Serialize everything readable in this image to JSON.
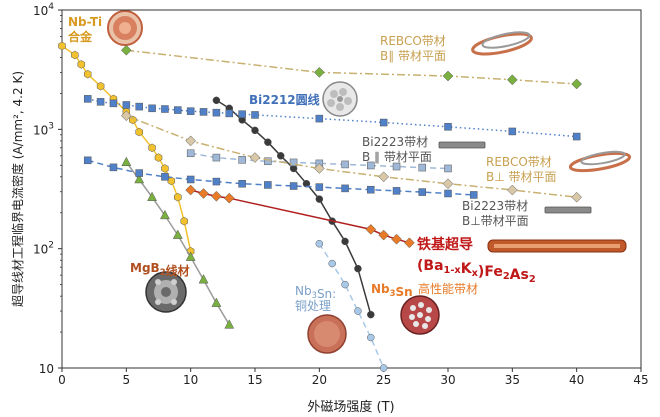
{
  "chart_data": {
    "type": "line",
    "title": "",
    "xlabel": "外磁场强度 (T)",
    "ylabel": "超导线材工程临界电流密度 (A/mm², 4.2 K)",
    "xlim": [
      0,
      45
    ],
    "ylim": [
      10,
      10000
    ],
    "yscale": "log",
    "grid": false,
    "xticks": [
      "0",
      "5",
      "10",
      "15",
      "20",
      "25",
      "30",
      "35",
      "40",
      "45"
    ],
    "yticks": [
      {
        "base": "10",
        "exp": "",
        "value": 10
      },
      {
        "base": "10",
        "exp": "2",
        "value": 100
      },
      {
        "base": "10",
        "exp": "3",
        "value": 1000
      },
      {
        "base": "10",
        "exp": "4",
        "value": 10000
      }
    ],
    "series": [
      {
        "name": "Nb-Ti",
        "color": "#f2c12e",
        "marker": "hexagon",
        "linestyle": "solid",
        "x": [
          0,
          1,
          1.5,
          2,
          3,
          4,
          5,
          5.5,
          6,
          7,
          7.5,
          8,
          8.5,
          9,
          9.5,
          10
        ],
        "y": [
          5000,
          4200,
          3500,
          2900,
          2300,
          1800,
          1400,
          1200,
          950,
          700,
          580,
          470,
          370,
          270,
          170,
          95
        ]
      },
      {
        "name": "MgB2",
        "color": "#7ab040",
        "marker": "triangle",
        "linestyle": "solid",
        "line_color": "#9a9a9a",
        "x": [
          5,
          6,
          7,
          8,
          9,
          10,
          11,
          12,
          13
        ],
        "y": [
          530,
          380,
          270,
          190,
          130,
          85,
          55,
          35,
          23
        ]
      },
      {
        "name": "Nb3Sn 高性能",
        "color": "#3a3a3a",
        "marker": "circle",
        "linestyle": "solid",
        "x": [
          12,
          13,
          14,
          15,
          16,
          17,
          18,
          19,
          20,
          21,
          22,
          23,
          24
        ],
        "y": [
          1750,
          1500,
          1200,
          980,
          780,
          600,
          470,
          350,
          260,
          170,
          115,
          68,
          28
        ]
      },
      {
        "name": "Nb3Sn 铜处理",
        "color": "#a8c8e8",
        "marker": "circle",
        "linestyle": "dashed",
        "x": [
          20,
          21,
          22,
          23,
          24,
          25
        ],
        "y": [
          110,
          75,
          50,
          30,
          18,
          10
        ]
      },
      {
        "name": "Bi2212",
        "color": "#5080c8",
        "marker": "square",
        "linestyle": "dotted",
        "x": [
          2,
          3,
          4,
          5,
          6,
          7,
          8,
          9,
          10,
          11,
          12,
          13,
          14,
          15,
          20,
          25,
          30,
          35,
          40
        ],
        "y": [
          1800,
          1700,
          1650,
          1600,
          1550,
          1500,
          1480,
          1450,
          1420,
          1400,
          1380,
          1360,
          1340,
          1320,
          1230,
          1140,
          1050,
          960,
          870
        ]
      },
      {
        "name": "Bi2223 B∥",
        "color": "#a0b8d8",
        "marker": "square",
        "linestyle": "dashed",
        "x": [
          10,
          12,
          14,
          16,
          18,
          20,
          22,
          24,
          26,
          28,
          30
        ],
        "y": [
          630,
          580,
          555,
          540,
          528,
          518,
          508,
          498,
          488,
          478,
          470
        ]
      },
      {
        "name": "Bi2223 B⊥",
        "color": "#5080c8",
        "marker": "square",
        "linestyle": "dashed",
        "x": [
          2,
          4,
          6,
          8,
          10,
          12,
          14,
          16,
          18,
          20,
          22,
          24,
          26,
          28,
          30,
          32
        ],
        "y": [
          550,
          480,
          430,
          400,
          380,
          365,
          350,
          342,
          335,
          328,
          320,
          312,
          305,
          298,
          290,
          282
        ]
      },
      {
        "name": "REBCO B∥",
        "color": "#7ab040",
        "marker": "diamond",
        "linestyle": "dashdot",
        "line_color": "#c8b070",
        "x": [
          5,
          20,
          30,
          35,
          40
        ],
        "y": [
          4600,
          3000,
          2800,
          2600,
          2400
        ]
      },
      {
        "name": "REBCO B⊥",
        "color": "#d8c8a8",
        "marker": "diamond",
        "linestyle": "dashdot",
        "line_color": "#c8b070",
        "x": [
          5,
          10,
          15,
          20,
          25,
          30,
          35,
          40
        ],
        "y": [
          1300,
          800,
          580,
          470,
          400,
          350,
          310,
          270
        ]
      },
      {
        "name": "铁基超导",
        "color": "#e87a28",
        "marker": "diamond",
        "linestyle": "solid",
        "line_color": "#b02020",
        "x": [
          10,
          11,
          12,
          13,
          24,
          25,
          26,
          27
        ],
        "y": [
          310,
          290,
          275,
          265,
          145,
          130,
          120,
          112
        ]
      }
    ],
    "annotations": [
      {
        "id": "nbti",
        "lines": [
          "Nb-Ti",
          "合金"
        ],
        "color": "#d89a20"
      },
      {
        "id": "rebco_par",
        "lines": [
          "REBCO带材",
          "B∥ 带材平面"
        ],
        "color": "#c8a050"
      },
      {
        "id": "bi2212",
        "lines": [
          "Bi2212圆线"
        ],
        "color": "#4070b8"
      },
      {
        "id": "bi2223_par",
        "lines": [
          "Bi2223带材",
          "B ∥ 带材平面"
        ],
        "color": "#555555"
      },
      {
        "id": "rebco_perp",
        "lines": [
          "REBCO带材",
          "B⊥ 带材平面"
        ],
        "color": "#c8a050"
      },
      {
        "id": "bi2223_perp",
        "lines": [
          "Bi2223带材",
          "B⊥带材平面"
        ],
        "color": "#555555"
      },
      {
        "id": "iron1",
        "lines": [
          "铁基超导"
        ],
        "color": "#c01818"
      },
      {
        "id": "iron2",
        "lines": [
          "(Ba1-xKx)Fe2As2"
        ],
        "color": "#c01818"
      },
      {
        "id": "mgb2",
        "lines": [
          "MgB2线材"
        ],
        "color": "#b05020"
      },
      {
        "id": "nb3sn_cu",
        "lines": [
          "Nb3Sn:",
          "铜处理"
        ],
        "color": "#7aa0c8"
      },
      {
        "id": "nb3sn_hp_a",
        "lines": [
          "Nb3Sn"
        ],
        "color": "#e87a28"
      },
      {
        "id": "nb3sn_hp_b",
        "lines": [
          "高性能带材"
        ],
        "color": "#e87a28"
      }
    ]
  }
}
